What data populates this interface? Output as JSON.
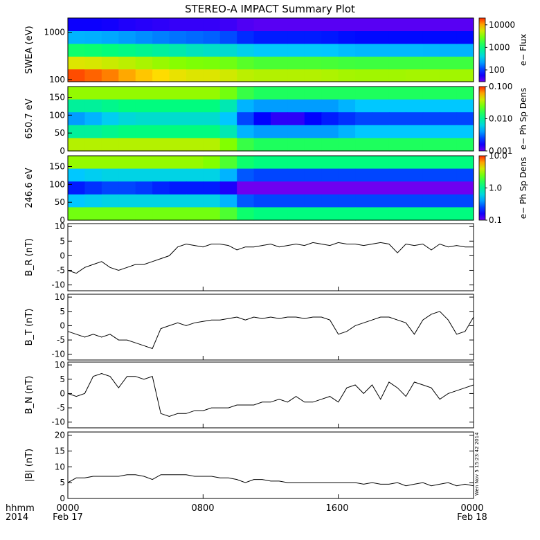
{
  "title": "STEREO-A IMPACT Summary Plot",
  "footer": {
    "corner_top": "hhmm",
    "corner_bottom": "2014",
    "ticks": [
      "0000",
      "0800",
      "1600",
      "0000"
    ],
    "dates": [
      "Feb 17",
      "",
      "",
      "Feb 18"
    ],
    "stamp": "Wen Nov  5 15:23:42 2014"
  },
  "colors": {
    "line": "#000000",
    "frame": "#000000",
    "background": "#ffffff"
  },
  "chart_data": [
    {
      "type": "heatmap",
      "ylabel": "SWEA (eV)",
      "ylog": true,
      "ylim": [
        90,
        2000
      ],
      "yticks": [
        "100",
        "1000"
      ],
      "colorbar": {
        "label": "e− Flux",
        "ticks": [
          "100",
          "1000",
          "10000"
        ],
        "range": [
          30,
          20000
        ]
      },
      "x_hours": [
        0,
        1,
        2,
        3,
        4,
        5,
        6,
        7,
        8,
        9,
        10,
        11,
        12,
        13,
        14,
        15,
        16,
        17,
        18,
        19,
        20,
        21,
        22,
        23,
        24
      ],
      "y_energy_eV": [
        100,
        200,
        400,
        800,
        1500
      ],
      "z_flux": [
        [
          18000,
          15000,
          14000,
          11000,
          9000,
          8000,
          7000,
          6000,
          6000,
          6000,
          5000,
          4500,
          4500,
          4500,
          4500,
          4500,
          4200,
          4000,
          4000,
          4000,
          4000,
          4200,
          4000,
          4000,
          4000
        ],
        [
          6000,
          6000,
          5500,
          5000,
          4500,
          4000,
          3500,
          3200,
          3000,
          3000,
          2500,
          2000,
          2000,
          2000,
          2000,
          2000,
          1900,
          1800,
          1800,
          1800,
          1800,
          1800,
          1800,
          1800,
          1800
        ],
        [
          1200,
          1200,
          1100,
          1000,
          900,
          800,
          700,
          600,
          500,
          500,
          400,
          300,
          300,
          300,
          300,
          300,
          280,
          260,
          260,
          260,
          260,
          260,
          250,
          250,
          250
        ],
        [
          250,
          250,
          240,
          220,
          200,
          180,
          160,
          150,
          140,
          130,
          100,
          80,
          80,
          80,
          80,
          80,
          75,
          70,
          70,
          70,
          70,
          70,
          70,
          70,
          70
        ],
        [
          60,
          60,
          60,
          55,
          50,
          50,
          45,
          45,
          45,
          45,
          40,
          35,
          35,
          35,
          35,
          35,
          35,
          35,
          35,
          35,
          35,
          35,
          35,
          35,
          35
        ]
      ]
    },
    {
      "type": "heatmap",
      "ylabel": "650.7 eV",
      "ylim": [
        0,
        180
      ],
      "yticks": [
        "0",
        "50",
        "100",
        "150"
      ],
      "colorbar": {
        "label": "e− Ph Sp Dens",
        "ticks": [
          "0.001",
          "0.010",
          "0.100"
        ],
        "range": [
          0.001,
          0.1
        ]
      },
      "x_hours": [
        0,
        1,
        2,
        3,
        4,
        5,
        6,
        7,
        8,
        9,
        10,
        11,
        12,
        13,
        14,
        15,
        16,
        17,
        18,
        19,
        20,
        21,
        22,
        23,
        24
      ],
      "y_pitch_deg": [
        10,
        45,
        90,
        135,
        170
      ],
      "z_psd": [
        [
          0.03,
          0.03,
          0.03,
          0.03,
          0.03,
          0.03,
          0.03,
          0.03,
          0.03,
          0.03,
          0.02,
          0.015,
          0.015,
          0.015,
          0.015,
          0.015,
          0.015,
          0.015,
          0.015,
          0.015,
          0.015,
          0.015,
          0.015,
          0.015,
          0.015
        ],
        [
          0.01,
          0.01,
          0.01,
          0.012,
          0.012,
          0.012,
          0.012,
          0.012,
          0.012,
          0.012,
          0.005,
          0.004,
          0.004,
          0.004,
          0.004,
          0.004,
          0.004,
          0.005,
          0.005,
          0.005,
          0.005,
          0.005,
          0.005,
          0.005,
          0.005
        ],
        [
          0.004,
          0.004,
          0.005,
          0.006,
          0.007,
          0.007,
          0.007,
          0.007,
          0.007,
          0.007,
          0.003,
          0.002,
          0.0015,
          0.0013,
          0.0015,
          0.002,
          0.002,
          0.0025,
          0.0025,
          0.0025,
          0.0025,
          0.0025,
          0.0025,
          0.0025,
          0.0025
        ],
        [
          0.01,
          0.01,
          0.01,
          0.012,
          0.012,
          0.012,
          0.012,
          0.012,
          0.012,
          0.012,
          0.005,
          0.004,
          0.004,
          0.004,
          0.004,
          0.004,
          0.004,
          0.005,
          0.005,
          0.005,
          0.005,
          0.005,
          0.005,
          0.005,
          0.005
        ],
        [
          0.035,
          0.035,
          0.035,
          0.035,
          0.035,
          0.035,
          0.035,
          0.035,
          0.035,
          0.035,
          0.02,
          0.015,
          0.015,
          0.015,
          0.015,
          0.015,
          0.015,
          0.015,
          0.015,
          0.015,
          0.015,
          0.015,
          0.015,
          0.015,
          0.015
        ]
      ]
    },
    {
      "type": "heatmap",
      "ylabel": "246.6 eV",
      "ylim": [
        0,
        180
      ],
      "yticks": [
        "0",
        "50",
        "100",
        "150"
      ],
      "colorbar": {
        "label": "e− Ph Sp Dens",
        "ticks": [
          "0.1",
          "1.0",
          "10.0"
        ],
        "range": [
          0.1,
          10
        ]
      },
      "x_hours": [
        0,
        1,
        2,
        3,
        4,
        5,
        6,
        7,
        8,
        9,
        10,
        11,
        12,
        13,
        14,
        15,
        16,
        17,
        18,
        19,
        20,
        21,
        22,
        23,
        24
      ],
      "y_pitch_deg": [
        10,
        45,
        90,
        135,
        170
      ],
      "z_psd": [
        [
          3,
          3,
          3,
          3,
          3,
          3,
          3,
          3,
          3,
          2.5,
          1.5,
          1.2,
          1.2,
          1.2,
          1.2,
          1.2,
          1.2,
          1.2,
          1.2,
          1.2,
          1.2,
          1.2,
          1.2,
          1.2,
          1.2
        ],
        [
          0.5,
          0.5,
          0.6,
          0.6,
          0.6,
          0.6,
          0.6,
          0.6,
          0.6,
          0.6,
          0.3,
          0.25,
          0.25,
          0.25,
          0.25,
          0.25,
          0.25,
          0.25,
          0.25,
          0.25,
          0.25,
          0.25,
          0.25,
          0.25,
          0.25
        ],
        [
          0.2,
          0.2,
          0.25,
          0.25,
          0.25,
          0.22,
          0.2,
          0.2,
          0.2,
          0.2,
          0.1,
          0.1,
          0.1,
          0.1,
          0.1,
          0.1,
          0.1,
          0.1,
          0.1,
          0.1,
          0.1,
          0.1,
          0.1,
          0.1,
          0.1
        ],
        [
          0.5,
          0.5,
          0.6,
          0.6,
          0.6,
          0.6,
          0.6,
          0.6,
          0.6,
          0.6,
          0.3,
          0.25,
          0.25,
          0.25,
          0.25,
          0.25,
          0.25,
          0.25,
          0.25,
          0.25,
          0.25,
          0.25,
          0.25,
          0.25,
          0.25
        ],
        [
          2.5,
          2.5,
          2.5,
          2.5,
          2.5,
          2.5,
          2.5,
          2.5,
          2.5,
          2.5,
          1.5,
          1.2,
          1.2,
          1.2,
          1.2,
          1.2,
          1.2,
          1.2,
          1.2,
          1.2,
          1.2,
          1.2,
          1.2,
          1.2,
          1.2
        ]
      ]
    },
    {
      "type": "line",
      "ylabel": "B_R (nT)",
      "ylim": [
        -12,
        11
      ],
      "yticks": [
        "10",
        "5",
        "0",
        "-5",
        "-10"
      ],
      "x_hours": [
        0,
        0.5,
        1,
        1.5,
        2,
        2.5,
        3,
        3.5,
        4,
        4.5,
        5,
        5.5,
        6,
        6.5,
        7,
        7.5,
        8,
        8.5,
        9,
        9.5,
        10,
        10.5,
        11,
        11.5,
        12,
        12.5,
        13,
        13.5,
        14,
        14.5,
        15,
        15.5,
        16,
        16.5,
        17,
        17.5,
        18,
        18.5,
        19,
        19.5,
        20,
        20.5,
        21,
        21.5,
        22,
        22.5,
        23,
        23.5,
        24
      ],
      "values": [
        -5,
        -6,
        -4,
        -3,
        -2,
        -4,
        -5,
        -4,
        -3,
        -3,
        -2,
        -1,
        0,
        3,
        4,
        3.5,
        3,
        4,
        4,
        3.5,
        2,
        3,
        3,
        3.5,
        4,
        3,
        3.5,
        4,
        3.5,
        4.5,
        4,
        3.5,
        4.5,
        4,
        4,
        3.5,
        4,
        4.5,
        4,
        1,
        4,
        3.5,
        4,
        2,
        4,
        3,
        3.5,
        3,
        3
      ]
    },
    {
      "type": "line",
      "ylabel": "B_T (nT)",
      "ylim": [
        -12,
        11
      ],
      "yticks": [
        "10",
        "5",
        "0",
        "-5",
        "-10"
      ],
      "x_hours": [
        0,
        0.5,
        1,
        1.5,
        2,
        2.5,
        3,
        3.5,
        4,
        4.5,
        5,
        5.5,
        6,
        6.5,
        7,
        7.5,
        8,
        8.5,
        9,
        9.5,
        10,
        10.5,
        11,
        11.5,
        12,
        12.5,
        13,
        13.5,
        14,
        14.5,
        15,
        15.5,
        16,
        16.5,
        17,
        17.5,
        18,
        18.5,
        19,
        19.5,
        20,
        20.5,
        21,
        21.5,
        22,
        22.5,
        23,
        23.5,
        24
      ],
      "values": [
        -2,
        -3,
        -4,
        -3,
        -4,
        -3,
        -5,
        -5,
        -6,
        -7,
        -8,
        -1,
        0,
        1,
        0,
        1,
        1.5,
        2,
        2,
        2.5,
        3,
        2,
        3,
        2.5,
        3,
        2.5,
        3,
        3,
        2.5,
        3,
        3,
        2,
        -3,
        -2,
        0,
        1,
        2,
        3,
        3,
        2,
        1,
        -3,
        2,
        4,
        5,
        2,
        -3,
        -2,
        3
      ]
    },
    {
      "type": "line",
      "ylabel": "B_N (nT)",
      "ylim": [
        -12,
        11
      ],
      "yticks": [
        "10",
        "5",
        "0",
        "-5",
        "-10"
      ],
      "x_hours": [
        0,
        0.5,
        1,
        1.5,
        2,
        2.5,
        3,
        3.5,
        4,
        4.5,
        5,
        5.5,
        6,
        6.5,
        7,
        7.5,
        8,
        8.5,
        9,
        9.5,
        10,
        10.5,
        11,
        11.5,
        12,
        12.5,
        13,
        13.5,
        14,
        14.5,
        15,
        15.5,
        16,
        16.5,
        17,
        17.5,
        18,
        18.5,
        19,
        19.5,
        20,
        20.5,
        21,
        21.5,
        22,
        22.5,
        23,
        23.5,
        24
      ],
      "values": [
        0,
        -1,
        0,
        6,
        7,
        6,
        2,
        6,
        6,
        5,
        6,
        -7,
        -8,
        -7,
        -7,
        -6,
        -6,
        -5,
        -5,
        -5,
        -4,
        -4,
        -4,
        -3,
        -3,
        -2,
        -3,
        -1,
        -3,
        -3,
        -2,
        -1,
        -3,
        2,
        3,
        0,
        3,
        -2,
        4,
        2,
        -1,
        4,
        3,
        2,
        -2,
        0,
        1,
        2,
        3
      ]
    },
    {
      "type": "line",
      "ylabel": "|B| (nT)",
      "ylim": [
        0,
        21
      ],
      "yticks": [
        "20",
        "15",
        "10",
        "5",
        "0"
      ],
      "x_hours": [
        0,
        0.5,
        1,
        1.5,
        2,
        2.5,
        3,
        3.5,
        4,
        4.5,
        5,
        5.5,
        6,
        6.5,
        7,
        7.5,
        8,
        8.5,
        9,
        9.5,
        10,
        10.5,
        11,
        11.5,
        12,
        12.5,
        13,
        13.5,
        14,
        14.5,
        15,
        15.5,
        16,
        16.5,
        17,
        17.5,
        18,
        18.5,
        19,
        19.5,
        20,
        20.5,
        21,
        21.5,
        22,
        22.5,
        23,
        23.5,
        24
      ],
      "values": [
        5,
        6.5,
        6.5,
        7,
        7,
        7,
        7,
        7.5,
        7.5,
        7,
        6,
        7.5,
        7.5,
        7.5,
        7.5,
        7,
        7,
        7,
        6.5,
        6.5,
        6,
        5,
        6,
        6,
        5.5,
        5.5,
        5,
        5,
        5,
        5,
        5,
        5,
        5,
        5,
        5,
        4.5,
        5,
        4.5,
        4.5,
        5,
        4,
        4.5,
        5,
        4,
        4.5,
        5,
        4,
        4.5,
        4
      ]
    }
  ]
}
